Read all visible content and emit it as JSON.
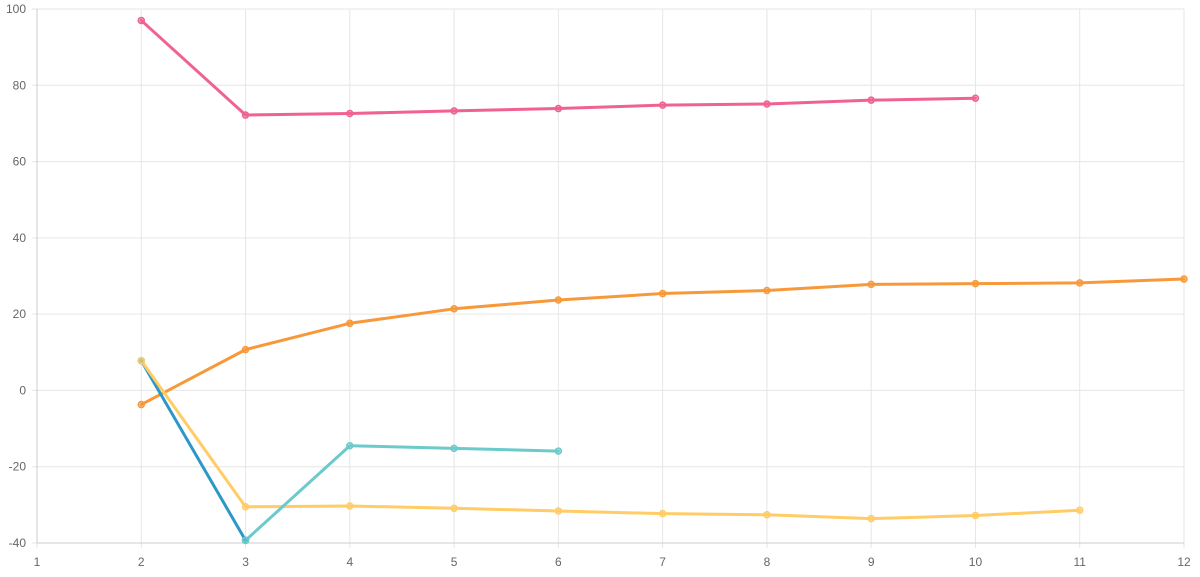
{
  "chart_data": {
    "type": "line",
    "xlabel": "",
    "ylabel": "",
    "xlim": [
      1,
      12
    ],
    "ylim": [
      -40,
      100
    ],
    "x_ticks": [
      1,
      2,
      3,
      4,
      5,
      6,
      7,
      8,
      9,
      10,
      11,
      12
    ],
    "y_ticks": [
      -40,
      -20,
      0,
      20,
      40,
      60,
      80,
      100
    ],
    "grid": true,
    "legend": "none",
    "series": [
      {
        "color": "#f06292",
        "x": [
          2,
          3,
          4,
          5,
          6,
          7,
          8,
          9,
          10
        ],
        "values": [
          97,
          72.2,
          72.6,
          73.3,
          73.9,
          74.8,
          75.1,
          76.1,
          76.6
        ]
      },
      {
        "color": "#f7993a",
        "x": [
          2,
          3,
          4,
          5,
          6,
          7,
          8,
          9,
          10,
          11,
          12
        ],
        "values": [
          -3.7,
          10.7,
          17.6,
          21.4,
          23.7,
          25.4,
          26.2,
          27.8,
          28.0,
          28.2,
          29.2
        ]
      },
      {
        "color": "#2b98c8",
        "x": [
          2,
          3
        ],
        "values": [
          7.8,
          -39.3
        ]
      },
      {
        "color": "#ffcc66",
        "x": [
          2,
          3,
          4,
          5,
          6,
          7,
          8,
          9,
          10,
          11
        ],
        "values": [
          7.8,
          -30.5,
          -30.3,
          -30.9,
          -31.6,
          -32.3,
          -32.6,
          -33.6,
          -32.8,
          -31.4
        ]
      },
      {
        "color": "#6ccaca",
        "x": [
          3,
          4,
          5,
          6
        ],
        "values": [
          -39.3,
          -14.5,
          -15.2,
          -15.9
        ]
      }
    ]
  }
}
